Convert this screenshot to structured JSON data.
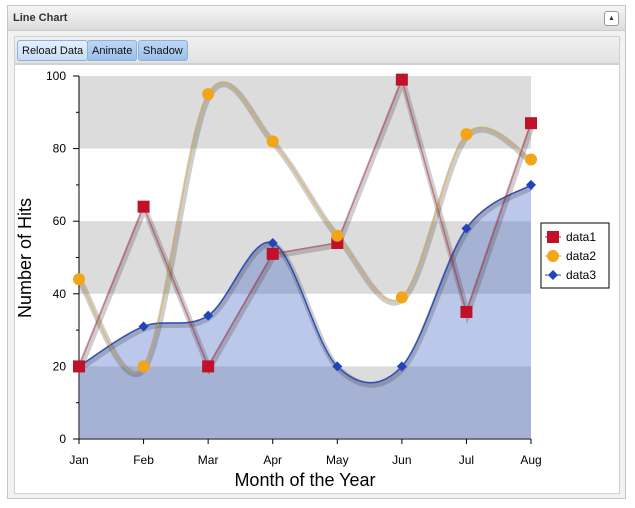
{
  "panel": {
    "title": "Line Chart",
    "collapse_icon": "triangle-up"
  },
  "toolbar": {
    "reload": "Reload Data",
    "animate": "Animate",
    "shadow": "Shadow"
  },
  "chart_data": {
    "type": "line",
    "categories": [
      "Jan",
      "Feb",
      "Mar",
      "Apr",
      "May",
      "Jun",
      "Jul",
      "Aug"
    ],
    "series": [
      {
        "name": "data1",
        "color": "#c0102a",
        "marker": "square",
        "smooth": false,
        "values": [
          20,
          64,
          20,
          51,
          54,
          99,
          35,
          87
        ]
      },
      {
        "name": "data2",
        "color": "#f2a516",
        "marker": "circle",
        "smooth": true,
        "values": [
          44,
          20,
          95,
          82,
          56,
          39,
          84,
          77
        ]
      },
      {
        "name": "data3",
        "color": "#2244bb",
        "marker": "diamond",
        "smooth": true,
        "fill": true,
        "values": [
          20,
          31,
          34,
          54,
          20,
          20,
          58,
          70
        ]
      }
    ],
    "xlabel": "Month of the Year",
    "ylabel": "Number of Hits",
    "ylim": [
      0,
      100
    ],
    "yticks": [
      "0",
      "20",
      "40",
      "60",
      "80",
      "100"
    ],
    "grid": "alternating bands",
    "legend": "right"
  }
}
